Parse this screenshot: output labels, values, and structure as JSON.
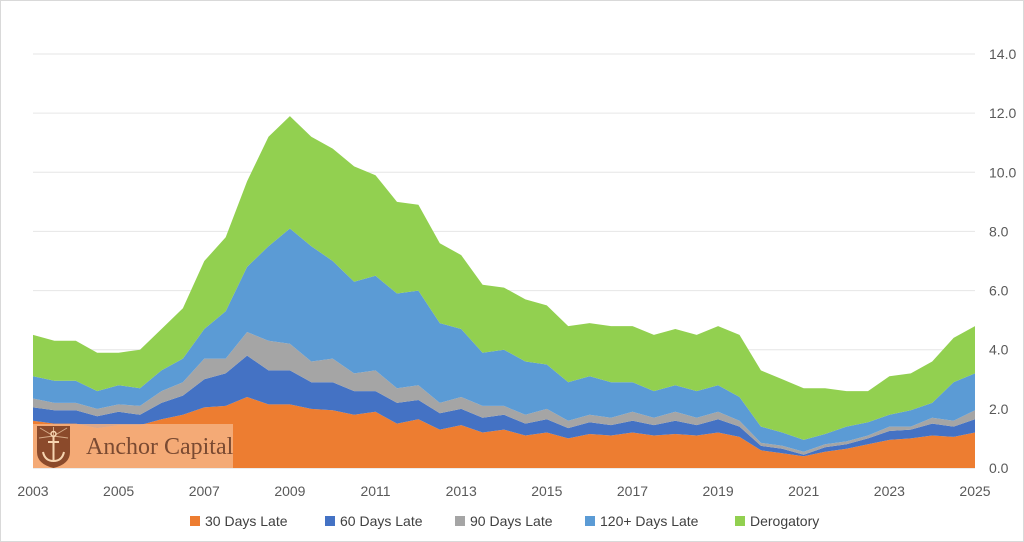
{
  "chart_data": {
    "type": "area",
    "stacked": true,
    "title": "",
    "xlabel": "",
    "ylabel": "",
    "xlim": [
      2003,
      2025
    ],
    "ylim": [
      0,
      14
    ],
    "grid": true,
    "legend_position": "bottom",
    "x_ticks": [
      "2003",
      "2005",
      "2007",
      "2009",
      "2011",
      "2013",
      "2015",
      "2017",
      "2019",
      "2021",
      "2023",
      "2025"
    ],
    "y_ticks": [
      "0.0",
      "2.0",
      "4.0",
      "6.0",
      "8.0",
      "10.0",
      "12.0",
      "14.0"
    ],
    "x": [
      2003,
      2003.5,
      2004,
      2004.5,
      2005,
      2005.5,
      2006,
      2006.5,
      2007,
      2007.5,
      2008,
      2008.5,
      2009,
      2009.5,
      2010,
      2010.5,
      2011,
      2011.5,
      2012,
      2012.5,
      2013,
      2013.5,
      2014,
      2014.5,
      2015,
      2015.5,
      2016,
      2016.5,
      2017,
      2017.5,
      2018,
      2018.5,
      2019,
      2019.5,
      2020,
      2020.5,
      2021,
      2021.5,
      2022,
      2022.5,
      2023,
      2023.5,
      2024,
      2024.5,
      2025
    ],
    "series": [
      {
        "name": "30 Days Late",
        "color": "#ed7d31",
        "values": [
          1.6,
          1.5,
          1.5,
          1.35,
          1.45,
          1.45,
          1.65,
          1.8,
          2.05,
          2.1,
          2.4,
          2.15,
          2.15,
          2.0,
          1.95,
          1.8,
          1.9,
          1.5,
          1.65,
          1.3,
          1.45,
          1.2,
          1.3,
          1.1,
          1.2,
          1.0,
          1.15,
          1.1,
          1.2,
          1.1,
          1.15,
          1.1,
          1.2,
          1.05,
          0.6,
          0.5,
          0.4,
          0.55,
          0.65,
          0.8,
          0.95,
          1.0,
          1.1,
          1.05,
          1.2
        ]
      },
      {
        "name": "60 Days Late",
        "color": "#4472c4",
        "values": [
          0.45,
          0.45,
          0.45,
          0.4,
          0.45,
          0.35,
          0.55,
          0.65,
          0.95,
          1.1,
          1.4,
          1.15,
          1.15,
          0.9,
          0.95,
          0.8,
          0.7,
          0.7,
          0.65,
          0.55,
          0.55,
          0.5,
          0.5,
          0.4,
          0.45,
          0.35,
          0.4,
          0.35,
          0.4,
          0.35,
          0.45,
          0.35,
          0.45,
          0.35,
          0.15,
          0.15,
          0.05,
          0.15,
          0.15,
          0.2,
          0.3,
          0.3,
          0.4,
          0.35,
          0.45
        ]
      },
      {
        "name": "90 Days Late",
        "color": "#a5a5a5",
        "values": [
          0.3,
          0.25,
          0.25,
          0.25,
          0.25,
          0.3,
          0.4,
          0.45,
          0.7,
          0.5,
          0.8,
          1.0,
          0.9,
          0.7,
          0.8,
          0.6,
          0.7,
          0.5,
          0.5,
          0.35,
          0.4,
          0.4,
          0.3,
          0.3,
          0.35,
          0.25,
          0.25,
          0.25,
          0.3,
          0.25,
          0.3,
          0.25,
          0.25,
          0.2,
          0.1,
          0.1,
          0.1,
          0.1,
          0.1,
          0.1,
          0.15,
          0.1,
          0.2,
          0.2,
          0.3
        ]
      },
      {
        "name": "120+ Days Late",
        "color": "#5b9bd5",
        "values": [
          0.75,
          0.75,
          0.75,
          0.6,
          0.65,
          0.6,
          0.7,
          0.8,
          1.0,
          1.6,
          2.2,
          3.2,
          3.9,
          3.9,
          3.3,
          3.1,
          3.2,
          3.2,
          3.2,
          2.7,
          2.3,
          1.8,
          1.9,
          1.8,
          1.5,
          1.3,
          1.3,
          1.2,
          1.0,
          0.9,
          0.9,
          0.9,
          0.9,
          0.8,
          0.55,
          0.45,
          0.4,
          0.35,
          0.5,
          0.45,
          0.4,
          0.55,
          0.5,
          1.3,
          1.25
        ]
      },
      {
        "name": "Derogatory",
        "color": "#92d050",
        "values": [
          1.4,
          1.35,
          1.35,
          1.3,
          1.1,
          1.3,
          1.4,
          1.7,
          2.3,
          2.5,
          2.9,
          3.7,
          3.8,
          3.7,
          3.8,
          3.9,
          3.4,
          3.1,
          2.9,
          2.7,
          2.5,
          2.3,
          2.1,
          2.1,
          2.0,
          1.9,
          1.8,
          1.9,
          1.9,
          1.9,
          1.9,
          1.9,
          2.0,
          2.1,
          1.9,
          1.8,
          1.75,
          1.55,
          1.2,
          1.05,
          1.3,
          1.25,
          1.4,
          1.5,
          1.6
        ]
      }
    ]
  },
  "watermark": {
    "text": "Anchor Capital",
    "icon": "anchor-shield-logo"
  }
}
